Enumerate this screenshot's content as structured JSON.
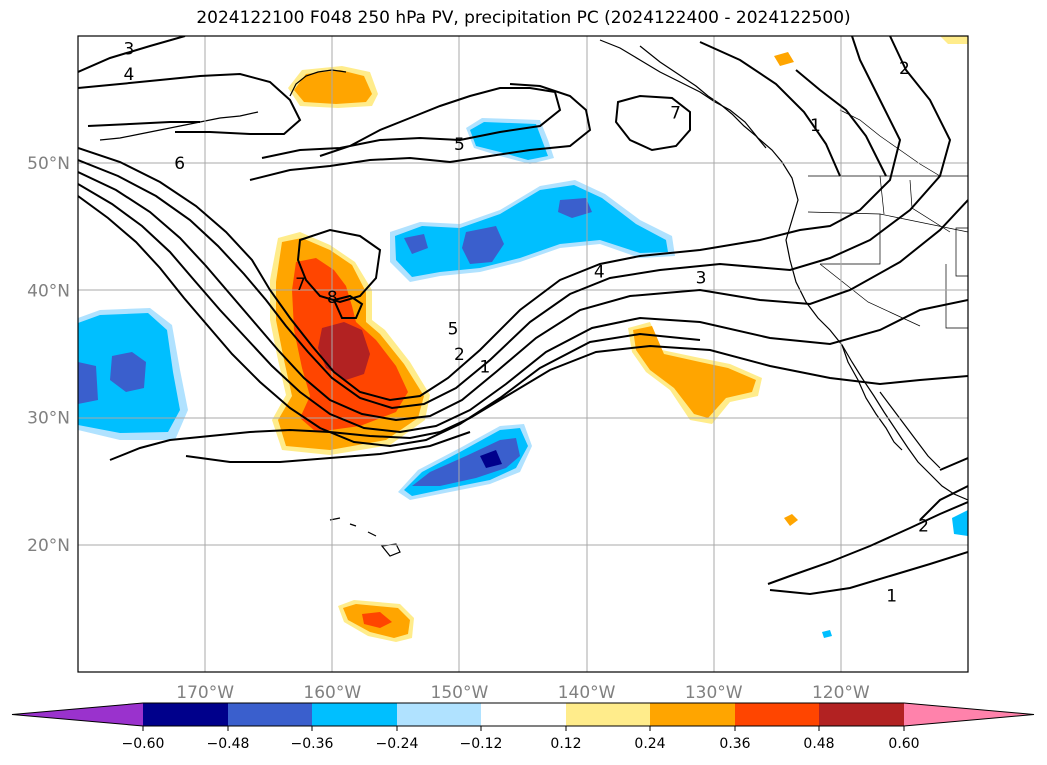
{
  "title": "2024122100 F048 250 hPa PV, precipitation PC (2024122400 - 2024122500)",
  "map": {
    "type": "contour-map",
    "lon_range": [
      -180,
      -110
    ],
    "lat_range": [
      10,
      60
    ],
    "lat_ticks": [
      {
        "value": 20,
        "label": "20°N"
      },
      {
        "value": 30,
        "label": "30°N"
      },
      {
        "value": 40,
        "label": "40°N"
      },
      {
        "value": 50,
        "label": "50°N"
      }
    ],
    "lon_ticks": [
      {
        "value": -170,
        "label": "170°W"
      },
      {
        "value": -160,
        "label": "160°W"
      },
      {
        "value": -150,
        "label": "150°W"
      },
      {
        "value": -140,
        "label": "140°W"
      },
      {
        "value": -130,
        "label": "130°W"
      },
      {
        "value": -120,
        "label": "120°W"
      }
    ],
    "grid": true,
    "contour_labels": [
      {
        "text": "3",
        "lon": -176.0,
        "lat": 59.0
      },
      {
        "text": "4",
        "lon": -176.0,
        "lat": 57.0
      },
      {
        "text": "6",
        "lon": -172.0,
        "lat": 50.0
      },
      {
        "text": "5",
        "lon": -150.0,
        "lat": 51.5
      },
      {
        "text": "7",
        "lon": -133.0,
        "lat": 54.0
      },
      {
        "text": "2",
        "lon": -115.0,
        "lat": 57.5
      },
      {
        "text": "1",
        "lon": -122.0,
        "lat": 53.0
      },
      {
        "text": "7",
        "lon": -162.5,
        "lat": 40.5
      },
      {
        "text": "8",
        "lon": -160.0,
        "lat": 39.5
      },
      {
        "text": "4",
        "lon": -139.0,
        "lat": 41.5
      },
      {
        "text": "3",
        "lon": -131.0,
        "lat": 41.0
      },
      {
        "text": "5",
        "lon": -150.5,
        "lat": 37.0
      },
      {
        "text": "2",
        "lon": -150.0,
        "lat": 35.0
      },
      {
        "text": "1",
        "lon": -148.0,
        "lat": 34.0
      },
      {
        "text": "2",
        "lon": -113.5,
        "lat": 21.5
      },
      {
        "text": "1",
        "lon": -116.0,
        "lat": 16.0
      }
    ]
  },
  "colorbar": {
    "tick_labels": [
      "−0.60",
      "−0.48",
      "−0.36",
      "−0.24",
      "−0.12",
      "0.12",
      "0.24",
      "0.36",
      "0.48",
      "0.60"
    ],
    "colors": [
      "#9a32cd",
      "#00008b",
      "#3a5fcd",
      "#00bfff",
      "#b0e2ff",
      "#ffffff",
      "#ffec8b",
      "#ffa500",
      "#ff4500",
      "#b22222",
      "#ff82ab"
    ]
  }
}
